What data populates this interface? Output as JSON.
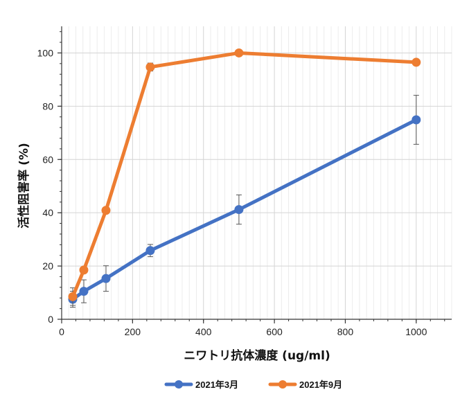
{
  "chart_data": {
    "type": "line",
    "xlabel": "ニワトリ抗体濃度 (ug/ml)",
    "ylabel": "活性阻害率 (%)",
    "xlim": [
      0,
      1100
    ],
    "ylim": [
      0,
      110
    ],
    "x_ticks": [
      0,
      200,
      400,
      600,
      800,
      1000
    ],
    "y_ticks": [
      0,
      20,
      40,
      60,
      80,
      100
    ],
    "grid": true,
    "legend_position": "bottom",
    "series": [
      {
        "name": "2021年3月",
        "color": "#4472C4",
        "x": [
          31.25,
          62.5,
          125,
          250,
          500,
          1000
        ],
        "y": [
          7.5,
          10.5,
          15.3,
          25.8,
          41.2,
          74.9
        ],
        "err": [
          3.0,
          4.3,
          4.8,
          2.3,
          5.5,
          9.2
        ]
      },
      {
        "name": "2021年9月",
        "color": "#ED7D31",
        "x": [
          31.25,
          62.5,
          125,
          250,
          500,
          1000
        ],
        "y": [
          8.5,
          18.5,
          40.9,
          94.7,
          100.0,
          96.5
        ],
        "err": [
          3.3,
          0.5,
          0.8,
          1.5,
          0.2,
          0.5
        ]
      }
    ]
  }
}
